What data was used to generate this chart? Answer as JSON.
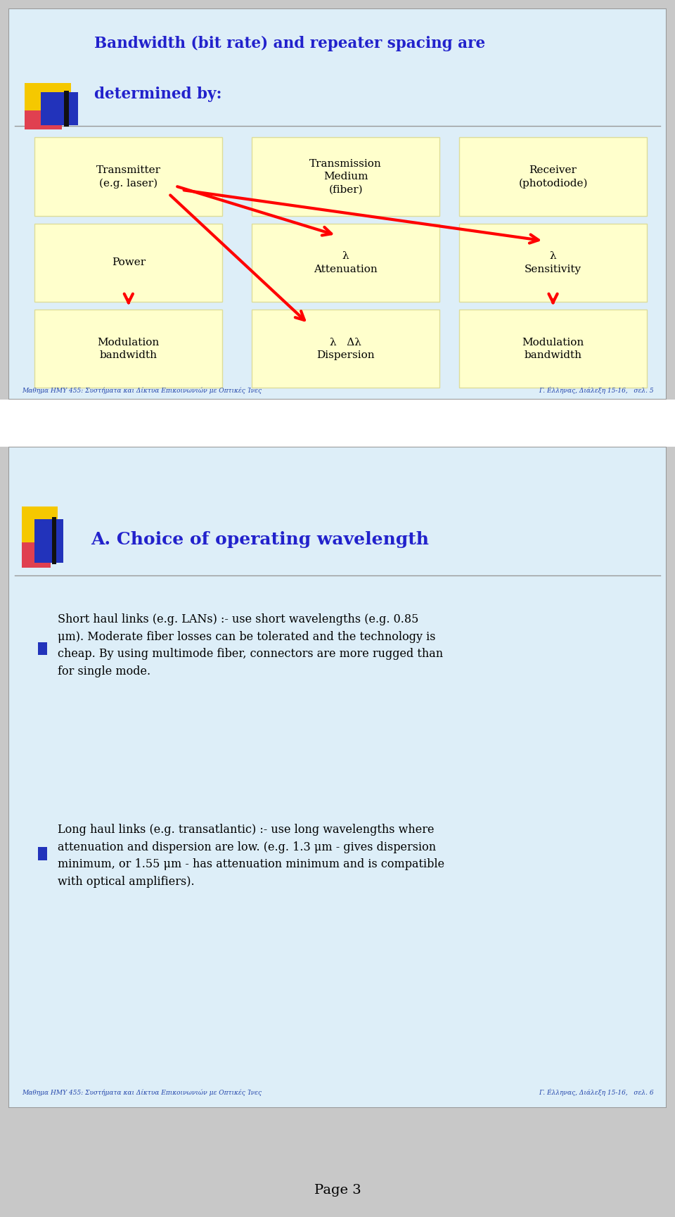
{
  "bg_color": "#ddeef8",
  "slide_border_color": "#999999",
  "page_bg": "#c8c8c8",
  "white_gap_color": "#ffffff",
  "slide1": {
    "title_line1": "Bandwidth (bit rate) and repeater spacing are",
    "title_line2": "determined by:",
    "title_color": "#2222cc",
    "box_fill": "#ffffcc",
    "box_border": "#dddd99",
    "box_labels_row0": [
      "Transmitter\n(e.g. laser)",
      "Transmission\nMedium\n(fiber)",
      "Receiver\n(photodiode)"
    ],
    "box_labels_row1": [
      "Power",
      "λ\nAttenuation",
      "λ\nSensitivity"
    ],
    "box_labels_row2": [
      "Modulation\nbandwidth",
      "λ   Δλ\nDispersion",
      "Modulation\nbandwidth"
    ],
    "footer_left": "Mαθημα HMY 455: Συστήματα και Δίκτυα Επικοινωνιών με Οπτικές Ίνες",
    "footer_right": "Γ. Éλληνας, Διάλεξη 15-16,   σελ. 5"
  },
  "slide2": {
    "section_title": "A. Choice of operating wavelength",
    "section_title_color": "#2222cc",
    "bullet1_text": "Short haul links (e.g. LANs) :- use short wavelengths (e.g. 0.85\nμm). Moderate fiber losses can be tolerated and the technology is\ncheap. By using multimode fiber, connectors are more rugged than\nfor single mode.",
    "bullet2_line1": "Long haul links (e.g. transatlantic) :- use long wavelengths where",
    "bullet2_line2": "attenuation and dispersion are low. (e.g. 1.3 μm - gives dispersion",
    "bullet2_line3a": "minimum, or 1.55 μm - has attenuation minimum ",
    "bullet2_line3b": "and",
    "bullet2_line3c": " is compatible",
    "bullet2_line4": "with optical amplifiers).",
    "footer_left": "Mαθημα HMY 455: Συστήματα και Δίκτυα Επικοινωνιών με Οπτικές Ίνες",
    "footer_right": "Γ. Éλληνας, Διάλεξη 15-16,   σελ. 6"
  },
  "page_label": "Page 3"
}
